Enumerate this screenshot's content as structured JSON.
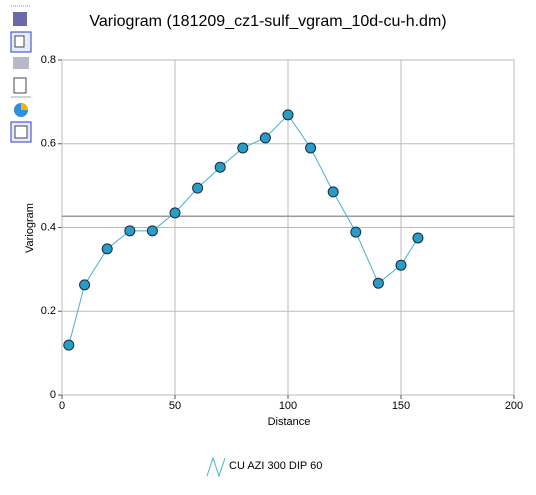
{
  "chart_data": {
    "type": "line",
    "title": "Variogram (181209_cz1-sulf_vgram_10d-cu-h.dm)",
    "x_label": "Distance",
    "y_label": "Variogram",
    "series": [
      {
        "name": "CU AZI 300 DIP 60",
        "color": "#4aaed6",
        "x": [
          3,
          10,
          20,
          30,
          40,
          50,
          60,
          70,
          80,
          90,
          100,
          110,
          120,
          130,
          140,
          150,
          157.5
        ],
        "values": [
          0.119,
          0.263,
          0.349,
          0.392,
          0.392,
          0.435,
          0.494,
          0.544,
          0.59,
          0.614,
          0.669,
          0.59,
          0.485,
          0.389,
          0.267,
          0.31,
          0.375
        ]
      }
    ],
    "reference_line": 0.427,
    "xlim": [
      0,
      200
    ],
    "xticks": [
      0,
      50,
      100,
      150,
      200
    ],
    "ylim": [
      0,
      0.8
    ],
    "yticks": [
      0,
      0.2,
      0.4,
      0.6,
      0.8
    ],
    "grid": true
  }
}
